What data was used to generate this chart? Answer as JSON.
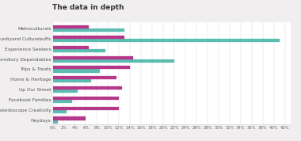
{
  "title": "The data in depth",
  "categories": [
    "Metroculturals",
    "Communityand Culturebuffs",
    "Experience Seekers",
    "Dormitory Dependables",
    "Trips & Treats",
    "Home & Heritage",
    "Up Our Street",
    "Facebook Families",
    "Kaleidoscope Creativity",
    "Heydays"
  ],
  "bookers": [
    13.0,
    41.0,
    9.5,
    22.0,
    8.5,
    7.0,
    4.5,
    3.5,
    2.5,
    1.0
  ],
  "households": [
    6.5,
    13.0,
    6.5,
    14.5,
    14.0,
    11.5,
    12.5,
    12.0,
    12.0,
    6.0
  ],
  "booker_color": "#5bbcb0",
  "household_color": "#b5378a",
  "background_color": "#f0eeee",
  "bar_bg_color": "#ffffff",
  "title_color": "#333333",
  "xlim": [
    0,
    43
  ],
  "xtick_step": 2,
  "xlabel_fontsize": 3.8,
  "ylabel_fontsize": 4.2,
  "title_fontsize": 6.5,
  "legend_fontsize": 4.5,
  "bar_height": 0.32,
  "hatch_pattern": "////"
}
